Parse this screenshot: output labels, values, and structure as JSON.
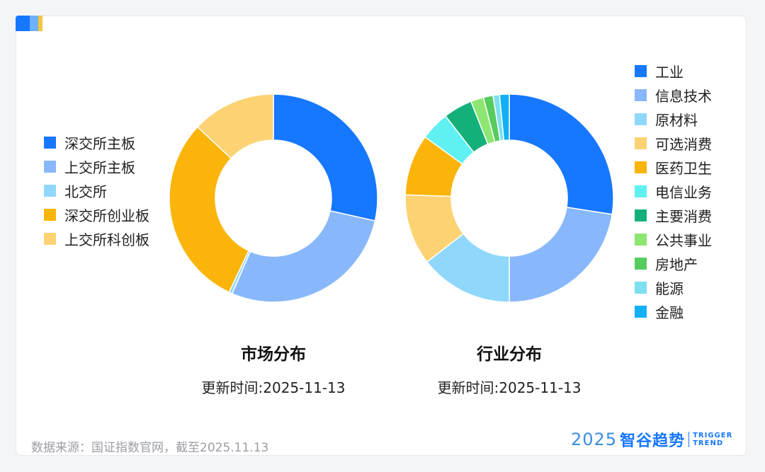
{
  "footer": {
    "source": "数据来源：国证指数官网，截至2025.11.13",
    "brand_year": "2025",
    "brand_name": "智谷趋势",
    "brand_en_1": "TRIGGER",
    "brand_en_2": "TREND"
  },
  "chart_data": [
    {
      "type": "pie",
      "title": "市场分布",
      "subtitle": "更新时间:2025-11-13",
      "legend_position": "left",
      "donut": true,
      "categories": [
        "深交所主板",
        "上交所主板",
        "北交所",
        "深交所创业板",
        "上交所科创板"
      ],
      "values": [
        28.5,
        28.0,
        0.5,
        30.0,
        13.0
      ],
      "colors": [
        "#1677ff",
        "#88b8fb",
        "#8fd8fb",
        "#fbb40a",
        "#fcd273"
      ]
    },
    {
      "type": "pie",
      "title": "行业分布",
      "subtitle": "更新时间:2025-11-13",
      "legend_position": "right",
      "donut": true,
      "categories": [
        "工业",
        "信息技术",
        "原材料",
        "可选消费",
        "医药卫生",
        "电信业务",
        "主要消费",
        "公共事业",
        "房地产",
        "能源",
        "金融"
      ],
      "values": [
        27.5,
        22.5,
        14.5,
        11.0,
        9.5,
        4.5,
        4.5,
        2.0,
        1.5,
        1.0,
        1.5
      ],
      "colors": [
        "#1677ff",
        "#88b8fb",
        "#8fd8fb",
        "#fcd273",
        "#fbb40a",
        "#5ff1f1",
        "#14b07a",
        "#8ee672",
        "#56cc5e",
        "#7ce0ef",
        "#12b0f5"
      ]
    }
  ]
}
